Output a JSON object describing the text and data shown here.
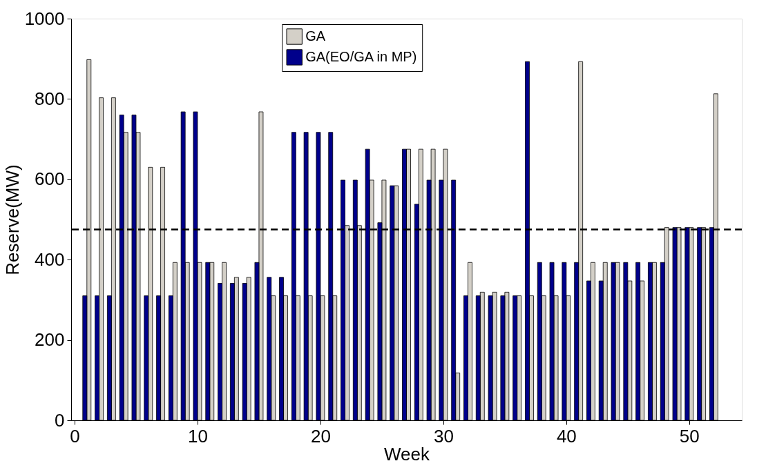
{
  "chart_data": {
    "type": "bar",
    "xlabel": "Week",
    "ylabel": "Reserve(MW)",
    "x": [
      1,
      2,
      3,
      4,
      5,
      6,
      7,
      8,
      9,
      10,
      11,
      12,
      13,
      14,
      15,
      16,
      17,
      18,
      19,
      20,
      21,
      22,
      23,
      24,
      25,
      26,
      27,
      28,
      29,
      30,
      31,
      32,
      33,
      34,
      35,
      36,
      37,
      38,
      39,
      40,
      41,
      42,
      43,
      44,
      45,
      46,
      47,
      48,
      49,
      50,
      51,
      52
    ],
    "series": [
      {
        "name": "GA",
        "color": "#d4d0c8",
        "values": [
          898,
          803,
          803,
          717,
          717,
          630,
          630,
          393,
          393,
          393,
          393,
          393,
          356,
          356,
          768,
          310,
          310,
          310,
          310,
          310,
          310,
          485,
          485,
          598,
          598,
          584,
          675,
          675,
          675,
          675,
          118,
          393,
          319,
          319,
          319,
          310,
          310,
          310,
          310,
          310,
          893,
          393,
          393,
          393,
          347,
          347,
          393,
          480,
          480,
          480,
          480,
          813
        ]
      },
      {
        "name": "GA(EO/GA in MP)",
        "color": "#00008b",
        "values": [
          310,
          310,
          310,
          760,
          760,
          310,
          310,
          310,
          768,
          768,
          393,
          341,
          341,
          341,
          393,
          356,
          356,
          717,
          717,
          717,
          717,
          598,
          598,
          675,
          492,
          584,
          675,
          538,
          598,
          598,
          598,
          310,
          310,
          310,
          310,
          310,
          893,
          393,
          393,
          393,
          393,
          347,
          347,
          393,
          393,
          393,
          393,
          393,
          480,
          480,
          480,
          480
        ]
      }
    ],
    "xlim": [
      0,
      54
    ],
    "xticks": [
      0,
      10,
      20,
      30,
      40,
      50
    ],
    "ylim": [
      0,
      1000
    ],
    "yticks": [
      0,
      200,
      400,
      600,
      800,
      1000
    ],
    "ref_lines": [
      {
        "axis": "y",
        "value": 475,
        "line_style": "dashed",
        "color": "#000000"
      }
    ],
    "legend": "top",
    "grid": false
  }
}
